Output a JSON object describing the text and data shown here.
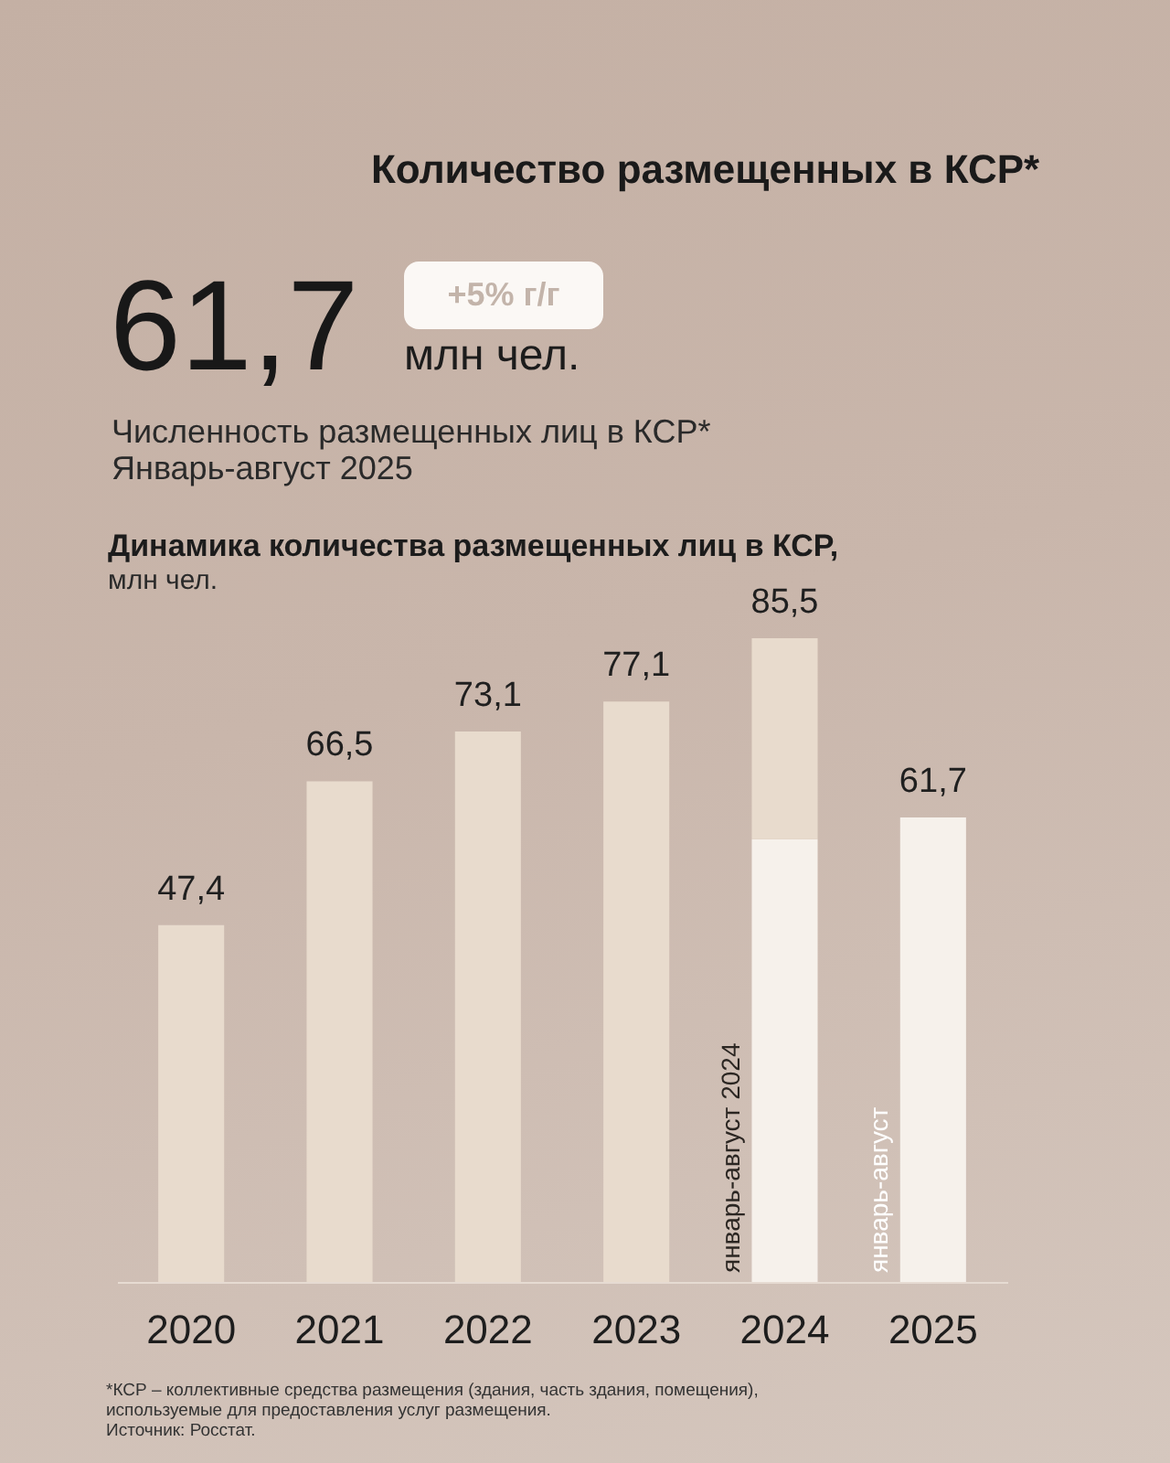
{
  "chart_data": {
    "type": "bar",
    "title": "Количество размещенных в КСР*",
    "subtitle": "Динамика количества размещенных лиц в КСР,",
    "ylabel": "млн чел.",
    "categories": [
      "2020",
      "2021",
      "2022",
      "2023",
      "2024",
      "2025"
    ],
    "stacked": true,
    "series": [
      {
        "color": "#f6f1eb",
        "values": [
          null,
          null,
          null,
          null,
          58.8,
          61.7
        ],
        "value_labels": [
          null,
          null,
          null,
          null,
          null,
          "61,7"
        ]
      },
      {
        "color": "#e8dbcd",
        "values": [
          47.4,
          66.5,
          73.1,
          77.1,
          26.7,
          null
        ],
        "value_labels": [
          "47,4",
          "66,5",
          "73,1",
          "77,1",
          null,
          null
        ]
      }
    ],
    "totals": [
      null,
      null,
      null,
      null,
      "85,5",
      null
    ],
    "annotations": [
      "61,7",
      "+5% г/г",
      "млн чел.",
      "Численность размещенных лиц в КСР*",
      "Январь-август 2025",
      {
        "text": "январь-август 2024",
        "x": "2024",
        "y": 0
      },
      {
        "text": "январь-август",
        "x": "2025",
        "y": 0
      },
      "*КСР – коллективные средства размещения (здания, часть здания, помещения),",
      "используемые для предоставления услуг размещения.",
      "Источник: Росстат."
    ]
  }
}
